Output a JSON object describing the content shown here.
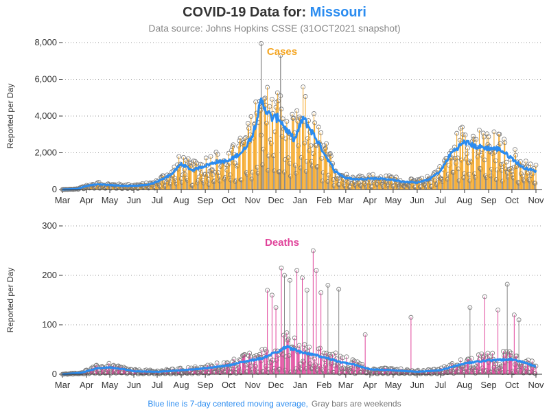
{
  "header": {
    "title_prefix": "COVID-19 Data for: ",
    "title_state": "Missouri",
    "subtitle": "Data source: Johns Hopkins CSSE (31OCT2021 snapshot)"
  },
  "footer": {
    "blue_text": "Blue line is 7-day centered moving average,",
    "gray_text": "Gray bars are weekends"
  },
  "colors": {
    "cases_bar": "#f5a623",
    "cases_fill": "#ffe0a8",
    "deaths_bar": "#e0439a",
    "moving_avg": "#2b8cf0",
    "weekend_bar": "#888888",
    "marker": "#777777"
  },
  "chart_data": [
    {
      "type": "bar",
      "panel": "Cases",
      "title": "Cases",
      "ylabel": "Reported per Day",
      "ylim": [
        0,
        8000
      ],
      "yticks": [
        0,
        2000,
        4000,
        6000,
        8000
      ],
      "ytick_labels": [
        "0",
        "2,000",
        "4,000",
        "6,000",
        "8,000"
      ],
      "month_labels": [
        "Mar",
        "Apr",
        "May",
        "Jun",
        "Jul",
        "Aug",
        "Sep",
        "Oct",
        "Nov",
        "Dec",
        "Jan",
        "Feb",
        "Mar",
        "Apr",
        "May",
        "Jun",
        "Jul",
        "Aug",
        "Sep",
        "Oct",
        "Nov"
      ],
      "x_range": [
        "2020-03-01",
        "2021-11-01"
      ],
      "moving_average_profile": [
        [
          "2020-03-01",
          0
        ],
        [
          "2020-03-20",
          30
        ],
        [
          "2020-04-01",
          200
        ],
        [
          "2020-04-15",
          280
        ],
        [
          "2020-05-01",
          240
        ],
        [
          "2020-05-15",
          210
        ],
        [
          "2020-06-01",
          200
        ],
        [
          "2020-06-20",
          260
        ],
        [
          "2020-07-01",
          420
        ],
        [
          "2020-07-20",
          850
        ],
        [
          "2020-08-01",
          1400
        ],
        [
          "2020-08-15",
          1050
        ],
        [
          "2020-09-01",
          1300
        ],
        [
          "2020-09-15",
          1500
        ],
        [
          "2020-10-01",
          1550
        ],
        [
          "2020-10-20",
          2100
        ],
        [
          "2020-11-01",
          3000
        ],
        [
          "2020-11-12",
          4800
        ],
        [
          "2020-11-25",
          3900
        ],
        [
          "2020-12-05",
          3900
        ],
        [
          "2020-12-15",
          3200
        ],
        [
          "2020-12-25",
          2700
        ],
        [
          "2021-01-05",
          3900
        ],
        [
          "2021-01-20",
          2900
        ],
        [
          "2021-02-01",
          2000
        ],
        [
          "2021-02-15",
          1000
        ],
        [
          "2021-03-01",
          620
        ],
        [
          "2021-03-15",
          560
        ],
        [
          "2021-04-01",
          600
        ],
        [
          "2021-04-15",
          600
        ],
        [
          "2021-05-01",
          520
        ],
        [
          "2021-05-15",
          420
        ],
        [
          "2021-06-01",
          380
        ],
        [
          "2021-06-15",
          520
        ],
        [
          "2021-07-01",
          1000
        ],
        [
          "2021-07-15",
          2000
        ],
        [
          "2021-08-01",
          2600
        ],
        [
          "2021-08-15",
          2350
        ],
        [
          "2021-09-01",
          2250
        ],
        [
          "2021-09-15",
          2200
        ],
        [
          "2021-10-01",
          1700
        ],
        [
          "2021-10-15",
          1200
        ],
        [
          "2021-11-01",
          1000
        ]
      ]
    },
    {
      "type": "bar",
      "panel": "Deaths",
      "title": "Deaths",
      "ylabel": "Reported per Day",
      "ylim": [
        0,
        300
      ],
      "yticks": [
        0,
        100,
        200,
        300
      ],
      "ytick_labels": [
        "0",
        "100",
        "200",
        "300"
      ],
      "month_labels": [
        "Mar",
        "Apr",
        "May",
        "Jun",
        "Jul",
        "Aug",
        "Sep",
        "Oct",
        "Nov",
        "Dec",
        "Jan",
        "Feb",
        "Mar",
        "Apr",
        "May",
        "Jun",
        "Jul",
        "Aug",
        "Sep",
        "Oct",
        "Nov"
      ],
      "x_range": [
        "2020-03-01",
        "2021-11-01"
      ],
      "moving_average_profile": [
        [
          "2020-03-01",
          0
        ],
        [
          "2020-03-25",
          3
        ],
        [
          "2020-04-15",
          12
        ],
        [
          "2020-05-01",
          14
        ],
        [
          "2020-05-20",
          10
        ],
        [
          "2020-06-01",
          6
        ],
        [
          "2020-07-01",
          5
        ],
        [
          "2020-08-01",
          8
        ],
        [
          "2020-09-01",
          12
        ],
        [
          "2020-10-01",
          18
        ],
        [
          "2020-10-20",
          25
        ],
        [
          "2020-11-15",
          33
        ],
        [
          "2020-12-01",
          45
        ],
        [
          "2020-12-15",
          55
        ],
        [
          "2021-01-01",
          45
        ],
        [
          "2021-01-15",
          40
        ],
        [
          "2021-02-01",
          35
        ],
        [
          "2021-02-20",
          25
        ],
        [
          "2021-03-10",
          20
        ],
        [
          "2021-04-01",
          10
        ],
        [
          "2021-05-01",
          8
        ],
        [
          "2021-06-01",
          5
        ],
        [
          "2021-07-01",
          8
        ],
        [
          "2021-08-01",
          22
        ],
        [
          "2021-09-01",
          28
        ],
        [
          "2021-10-01",
          30
        ],
        [
          "2021-10-20",
          22
        ],
        [
          "2021-11-01",
          15
        ]
      ],
      "spikes": [
        [
          "2020-11-20",
          170
        ],
        [
          "2020-11-26",
          160
        ],
        [
          "2020-12-01",
          135
        ],
        [
          "2020-12-08",
          215
        ],
        [
          "2020-12-12",
          200
        ],
        [
          "2020-12-19",
          190
        ],
        [
          "2020-12-28",
          210
        ],
        [
          "2021-01-04",
          195
        ],
        [
          "2021-01-10",
          170
        ],
        [
          "2021-01-18",
          250
        ],
        [
          "2021-01-22",
          210
        ],
        [
          "2021-01-28",
          165
        ],
        [
          "2021-02-06",
          180
        ],
        [
          "2021-02-20",
          172
        ],
        [
          "2021-03-26",
          80
        ],
        [
          "2021-05-24",
          115
        ],
        [
          "2021-08-08",
          135
        ],
        [
          "2021-08-27",
          157
        ],
        [
          "2021-09-13",
          130
        ],
        [
          "2021-09-25",
          182
        ],
        [
          "2021-10-04",
          120
        ],
        [
          "2021-10-10",
          110
        ]
      ]
    }
  ]
}
